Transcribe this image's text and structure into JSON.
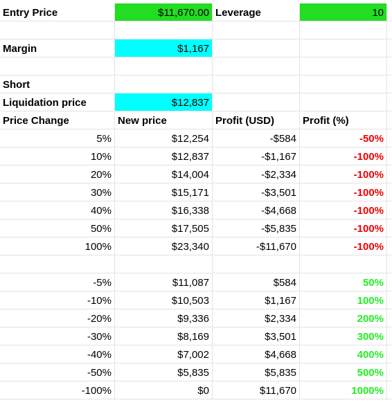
{
  "inputs": {
    "entry_price_label": "Entry Price",
    "entry_price": "$11,670.00",
    "leverage_label": "Leverage",
    "leverage": "10",
    "margin_label": "Margin",
    "margin": "$1,167",
    "short_label": "Short",
    "liquidation_label": "Liquidation price",
    "liquidation_price": "$12,837",
    "input_fill": "#22dd22",
    "calc_fill": "#00ffff"
  },
  "table": {
    "headers": [
      "Price Change",
      "New price",
      "Profit (USD)",
      "Profit (%)"
    ],
    "groups": [
      {
        "pct_color": "#ee0000",
        "rows": [
          [
            "5%",
            "$12,254",
            "-$584",
            "-50%"
          ],
          [
            "10%",
            "$12,837",
            "-$1,167",
            "-100%"
          ],
          [
            "20%",
            "$14,004",
            "-$2,334",
            "-100%"
          ],
          [
            "30%",
            "$15,171",
            "-$3,501",
            "-100%"
          ],
          [
            "40%",
            "$16,338",
            "-$4,668",
            "-100%"
          ],
          [
            "50%",
            "$17,505",
            "-$5,835",
            "-100%"
          ],
          [
            "100%",
            "$23,340",
            "-$11,670",
            "-100%"
          ]
        ]
      },
      {
        "pct_color": "#22ee22",
        "rows": [
          [
            "-5%",
            "$11,087",
            "$584",
            "50%"
          ],
          [
            "-10%",
            "$10,503",
            "$1,167",
            "100%"
          ],
          [
            "-20%",
            "$9,336",
            "$2,334",
            "200%"
          ],
          [
            "-30%",
            "$8,169",
            "$3,501",
            "300%"
          ],
          [
            "-40%",
            "$7,002",
            "$4,668",
            "400%"
          ],
          [
            "-50%",
            "$5,835",
            "$5,835",
            "500%"
          ],
          [
            "-100%",
            "$0",
            "$11,670",
            "1000%"
          ]
        ]
      }
    ]
  }
}
